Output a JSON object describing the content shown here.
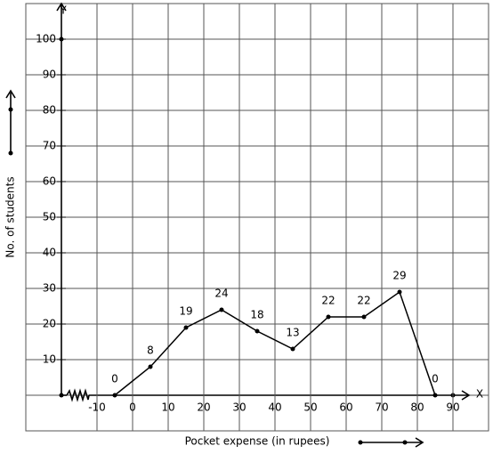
{
  "chart_data": {
    "type": "line",
    "x_label": "Pocket expense (in rupees)",
    "y_label": "No. of students",
    "x_axis_name": "X",
    "y_axis_name": "Y",
    "x": [
      -5,
      5,
      15,
      25,
      35,
      45,
      55,
      65,
      75,
      85
    ],
    "values": [
      0,
      8,
      19,
      24,
      18,
      13,
      22,
      22,
      29,
      0
    ],
    "color": "#000000",
    "xlim": [
      -30,
      100
    ],
    "ylim": [
      -10,
      110
    ],
    "xticks": [
      -10,
      0,
      10,
      20,
      30,
      40,
      50,
      60,
      70,
      80,
      90
    ],
    "yticks": [
      10,
      20,
      30,
      40,
      50,
      60,
      70,
      80,
      90,
      100
    ],
    "grid": true
  }
}
